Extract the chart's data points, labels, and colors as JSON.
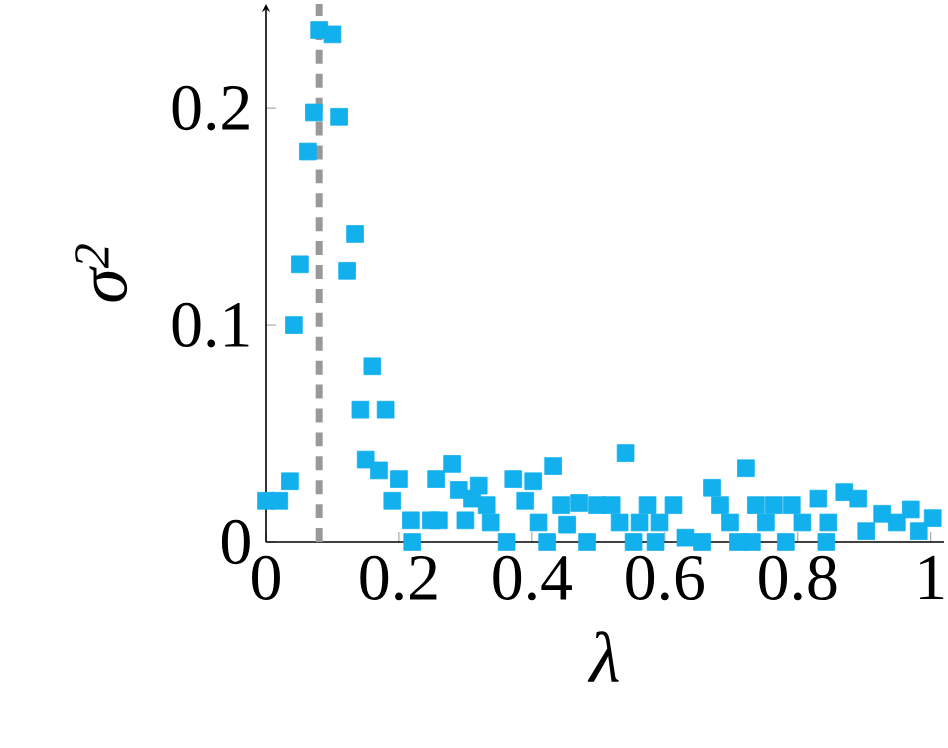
{
  "chart_data": {
    "type": "scatter",
    "xlabel": "λ",
    "ylabel": "σ$^{2}$",
    "xlim": [
      0,
      1.02
    ],
    "ylim": [
      0,
      0.248
    ],
    "xticks": [
      0,
      0.2,
      0.4,
      0.6,
      0.8,
      1
    ],
    "yticks": [
      0,
      0.1,
      0.2
    ],
    "marker": "square",
    "ref_lines": [
      {
        "axis": "x",
        "value": 0.08,
        "color": "#999999",
        "line_style": "dashed"
      }
    ],
    "series": [
      {
        "color": "#12b0ec",
        "x": [
          0,
          0.02,
          0.036,
          0.042,
          0.051,
          0.063,
          0.072,
          0.08,
          0.1,
          0.11,
          0.122,
          0.134,
          0.142,
          0.15,
          0.16,
          0.17,
          0.18,
          0.19,
          0.2,
          0.218,
          0.22,
          0.248,
          0.256,
          0.26,
          0.28,
          0.29,
          0.3,
          0.31,
          0.32,
          0.332,
          0.338,
          0.362,
          0.372,
          0.39,
          0.402,
          0.41,
          0.423,
          0.432,
          0.444,
          0.453,
          0.471,
          0.483,
          0.498,
          0.52,
          0.532,
          0.541,
          0.553,
          0.562,
          0.574,
          0.586,
          0.592,
          0.613,
          0.631,
          0.656,
          0.671,
          0.683,
          0.698,
          0.71,
          0.722,
          0.731,
          0.737,
          0.752,
          0.764,
          0.782,
          0.791,
          0.807,
          0.831,
          0.843,
          0.846,
          0.87,
          0.891,
          0.903,
          0.927,
          0.949,
          0.97,
          0.982,
          1.003
        ],
        "values": [
          0.019,
          0.019,
          0.028,
          0.1,
          0.128,
          0.18,
          0.198,
          0.236,
          0.234,
          0.196,
          0.125,
          0.142,
          0.061,
          0.038,
          0.081,
          0.033,
          0.061,
          0.019,
          0.029,
          0.01,
          0,
          0.01,
          0.029,
          0.01,
          0.036,
          0.024,
          0.01,
          0.02,
          0.026,
          0.017,
          0.009,
          0,
          0.029,
          0.019,
          0.028,
          0.009,
          0,
          0.035,
          0.017,
          0.008,
          0.018,
          0,
          0.017,
          0.017,
          0.009,
          0.041,
          0,
          0.009,
          0.017,
          0,
          0.009,
          0.017,
          0.002,
          0,
          0.025,
          0.017,
          0.009,
          0,
          0.034,
          0,
          0.017,
          0.009,
          0.017,
          0,
          0.017,
          0.009,
          0.02,
          0,
          0.009,
          0.023,
          0.02,
          0.005,
          0.013,
          0.009,
          0.015,
          0.005,
          0.011
        ]
      }
    ]
  }
}
